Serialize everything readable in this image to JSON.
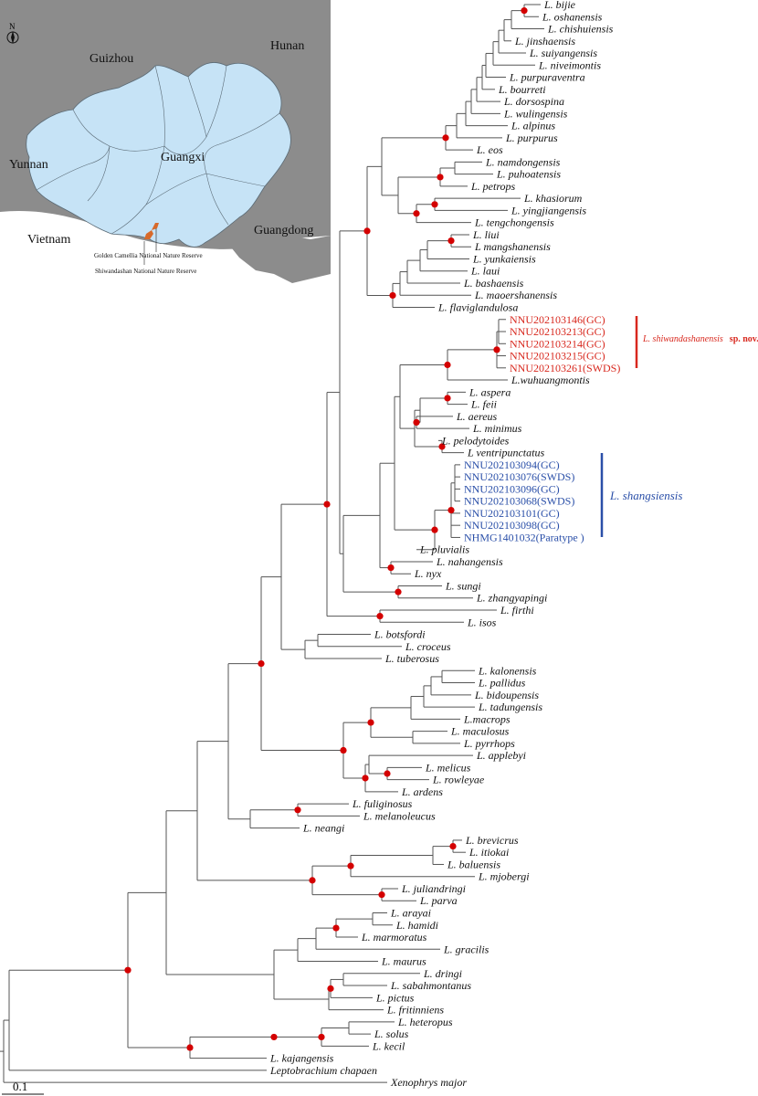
{
  "map": {
    "north_label": "N",
    "provinces": {
      "guizhou": "Guizhou",
      "hunan": "Hunan",
      "yunnan": "Yunnan",
      "guangxi": "Guangxi",
      "vietnam": "Vietnam",
      "guangdong": "Guangdong"
    },
    "reserves": {
      "golden_camellia": "Golden Camellia National Nature Reserve",
      "shiwandashan": "Shiwandashan National Nature Reserve"
    },
    "colors": {
      "land_gray": "#8c8c8c",
      "guangxi_fill": "#c6e3f6",
      "reserve_marker": "#d86a2a"
    }
  },
  "tree": {
    "tips": [
      {
        "id": "bijie",
        "label": "L. bijie",
        "style": "tip"
      },
      {
        "id": "oshanensis",
        "label": "L. oshanensis",
        "style": "tip"
      },
      {
        "id": "chishuiensis",
        "label": "L. chishuiensis",
        "style": "tip"
      },
      {
        "id": "jinshaensis",
        "label": "L. jinshaensis",
        "style": "tip"
      },
      {
        "id": "suiyangensis",
        "label": "L. suiyangensis",
        "style": "tip"
      },
      {
        "id": "niveimontis",
        "label": "L. niveimontis",
        "style": "tip"
      },
      {
        "id": "purpuraventra",
        "label": "L. purpuraventra",
        "style": "tip"
      },
      {
        "id": "bourreti",
        "label": "L. bourreti",
        "style": "tip"
      },
      {
        "id": "dorsospina",
        "label": "L. dorsospina",
        "style": "tip"
      },
      {
        "id": "wulingensis",
        "label": "L. wulingensis",
        "style": "tip"
      },
      {
        "id": "alpinus",
        "label": "L. alpinus",
        "style": "tip"
      },
      {
        "id": "purpurus",
        "label": "L. purpurus",
        "style": "tip"
      },
      {
        "id": "eos",
        "label": "L. eos",
        "style": "tip"
      },
      {
        "id": "namdongensis",
        "label": "L. namdongensis",
        "style": "tip"
      },
      {
        "id": "puhoatensis",
        "label": "L. puhoatensis",
        "style": "tip"
      },
      {
        "id": "petrops",
        "label": "L. petrops",
        "style": "tip"
      },
      {
        "id": "khasiorum",
        "label": "L. khasiorum",
        "style": "tip"
      },
      {
        "id": "yingjiangensis",
        "label": "L. yingjiangensis",
        "style": "tip"
      },
      {
        "id": "tengchongensis",
        "label": "L. tengchongensis",
        "style": "tip"
      },
      {
        "id": "liui",
        "label": "L. liui",
        "style": "tip"
      },
      {
        "id": "mangshanensis",
        "label": "L mangshanensis",
        "style": "tip"
      },
      {
        "id": "yunkaiensis",
        "label": "L. yunkaiensis",
        "style": "tip"
      },
      {
        "id": "laui",
        "label": "L. laui",
        "style": "tip"
      },
      {
        "id": "bashaensis",
        "label": "L. bashaensis",
        "style": "tip"
      },
      {
        "id": "maoershanensis",
        "label": "L. maoershanensis",
        "style": "tip"
      },
      {
        "id": "flaviglandulosa",
        "label": "L. flaviglandulosa",
        "style": "tip"
      },
      {
        "id": "nnu146",
        "label": "NNU202103146(GC)",
        "style": "tip-red"
      },
      {
        "id": "nnu213",
        "label": "NNU202103213(GC)",
        "style": "tip-red"
      },
      {
        "id": "nnu214",
        "label": "NNU202103214(GC)",
        "style": "tip-red"
      },
      {
        "id": "nnu215",
        "label": "NNU202103215(GC)",
        "style": "tip-red"
      },
      {
        "id": "nnu261",
        "label": "NNU202103261(SWDS)",
        "style": "tip-red"
      },
      {
        "id": "wuhuangmontis",
        "label": "L.wuhuangmontis",
        "style": "tip"
      },
      {
        "id": "aspera",
        "label": "L. aspera",
        "style": "tip"
      },
      {
        "id": "feii",
        "label": "L. feii",
        "style": "tip"
      },
      {
        "id": "aereus",
        "label": "L. aereus",
        "style": "tip"
      },
      {
        "id": "minimus",
        "label": "L. minimus",
        "style": "tip"
      },
      {
        "id": "pelodytoides",
        "label": "L. pelodytoides",
        "style": "tip"
      },
      {
        "id": "ventripunctatus",
        "label": "L ventripunctatus",
        "style": "tip"
      },
      {
        "id": "nnu094",
        "label": "NNU202103094(GC)",
        "style": "tip-blue"
      },
      {
        "id": "nnu076",
        "label": "NNU202103076(SWDS)",
        "style": "tip-blue"
      },
      {
        "id": "nnu096",
        "label": "NNU202103096(GC)",
        "style": "tip-blue"
      },
      {
        "id": "nnu068",
        "label": "NNU202103068(SWDS)",
        "style": "tip-blue"
      },
      {
        "id": "nnu101",
        "label": "NNU202103101(GC)",
        "style": "tip-blue"
      },
      {
        "id": "nnu098",
        "label": "NNU202103098(GC)",
        "style": "tip-blue"
      },
      {
        "id": "nhmg",
        "label": "NHMG1401032(Paratype )",
        "style": "tip-blue"
      },
      {
        "id": "pluvialis",
        "label": "L. pluvialis",
        "style": "tip"
      },
      {
        "id": "nahangensis",
        "label": "L. nahangensis",
        "style": "tip"
      },
      {
        "id": "nyx",
        "label": "L. nyx",
        "style": "tip"
      },
      {
        "id": "sungi",
        "label": "L. sungi",
        "style": "tip"
      },
      {
        "id": "zhangyapingi",
        "label": "L. zhangyapingi",
        "style": "tip"
      },
      {
        "id": "firthi",
        "label": "L. firthi",
        "style": "tip"
      },
      {
        "id": "isos",
        "label": "L. isos",
        "style": "tip"
      },
      {
        "id": "botsfordi",
        "label": "L. botsfordi",
        "style": "tip"
      },
      {
        "id": "croceus",
        "label": "L. croceus",
        "style": "tip"
      },
      {
        "id": "tuberosus",
        "label": "L. tuberosus",
        "style": "tip"
      },
      {
        "id": "kalonensis",
        "label": "L. kalonensis",
        "style": "tip"
      },
      {
        "id": "pallidus",
        "label": "L. pallidus",
        "style": "tip"
      },
      {
        "id": "bidoupensis",
        "label": "L. bidoupensis",
        "style": "tip"
      },
      {
        "id": "tadungensis",
        "label": "L. tadungensis",
        "style": "tip"
      },
      {
        "id": "macrops",
        "label": "L.macrops",
        "style": "tip"
      },
      {
        "id": "maculosus",
        "label": "L. maculosus",
        "style": "tip"
      },
      {
        "id": "pyrrhops",
        "label": "L. pyrrhops",
        "style": "tip"
      },
      {
        "id": "applebyi",
        "label": "L. applebyi",
        "style": "tip"
      },
      {
        "id": "melicus",
        "label": "L. melicus",
        "style": "tip"
      },
      {
        "id": "rowleyae",
        "label": "L. rowleyae",
        "style": "tip"
      },
      {
        "id": "ardens",
        "label": "L. ardens",
        "style": "tip"
      },
      {
        "id": "fuliginosus",
        "label": "L. fuliginosus",
        "style": "tip"
      },
      {
        "id": "melanoleucus",
        "label": "L. melanoleucus",
        "style": "tip"
      },
      {
        "id": "neangi",
        "label": "L. neangi",
        "style": "tip"
      },
      {
        "id": "brevicrus",
        "label": "L. brevicrus",
        "style": "tip"
      },
      {
        "id": "itiokai",
        "label": "L. itiokai",
        "style": "tip"
      },
      {
        "id": "baluensis",
        "label": "L. baluensis",
        "style": "tip"
      },
      {
        "id": "mjobergi",
        "label": "L. mjobergi",
        "style": "tip"
      },
      {
        "id": "juliandringi",
        "label": "L. juliandringi",
        "style": "tip"
      },
      {
        "id": "parva",
        "label": "L. parva",
        "style": "tip"
      },
      {
        "id": "arayai",
        "label": "L. arayai",
        "style": "tip"
      },
      {
        "id": "hamidi",
        "label": "L. hamidi",
        "style": "tip"
      },
      {
        "id": "marmoratus",
        "label": "L. marmoratus",
        "style": "tip"
      },
      {
        "id": "gracilis",
        "label": "L. gracilis",
        "style": "tip"
      },
      {
        "id": "maurus",
        "label": "L. maurus",
        "style": "tip"
      },
      {
        "id": "dringi",
        "label": "L. dringi",
        "style": "tip"
      },
      {
        "id": "sabahmontanus",
        "label": "L. sabahmontanus",
        "style": "tip"
      },
      {
        "id": "pictus",
        "label": "L. pictus",
        "style": "tip"
      },
      {
        "id": "fritinniens",
        "label": "L. fritinniens",
        "style": "tip"
      },
      {
        "id": "heteropus",
        "label": "L. heteropus",
        "style": "tip"
      },
      {
        "id": "solus",
        "label": "L. solus",
        "style": "tip"
      },
      {
        "id": "kecil",
        "label": "L. kecil",
        "style": "tip"
      },
      {
        "id": "kajangensis",
        "label": "L. kajangensis",
        "style": "tip"
      },
      {
        "id": "chapaen",
        "label": "Leptobrachium chapaen",
        "style": "tip"
      },
      {
        "id": "xenophrys",
        "label": "Xenophrys major",
        "style": "tip"
      }
    ],
    "clades": {
      "shiwandashanensis_name": "L. shiwandashanensis",
      "shiwandashanensis_suffix": "sp. nov.",
      "shangsiensis_name": "L. shangsiensis"
    },
    "scale_label": "0.1",
    "colors": {
      "support_node": "#d40000",
      "new_species": "#d8281e",
      "shangsiensis": "#2a4fa8"
    }
  }
}
